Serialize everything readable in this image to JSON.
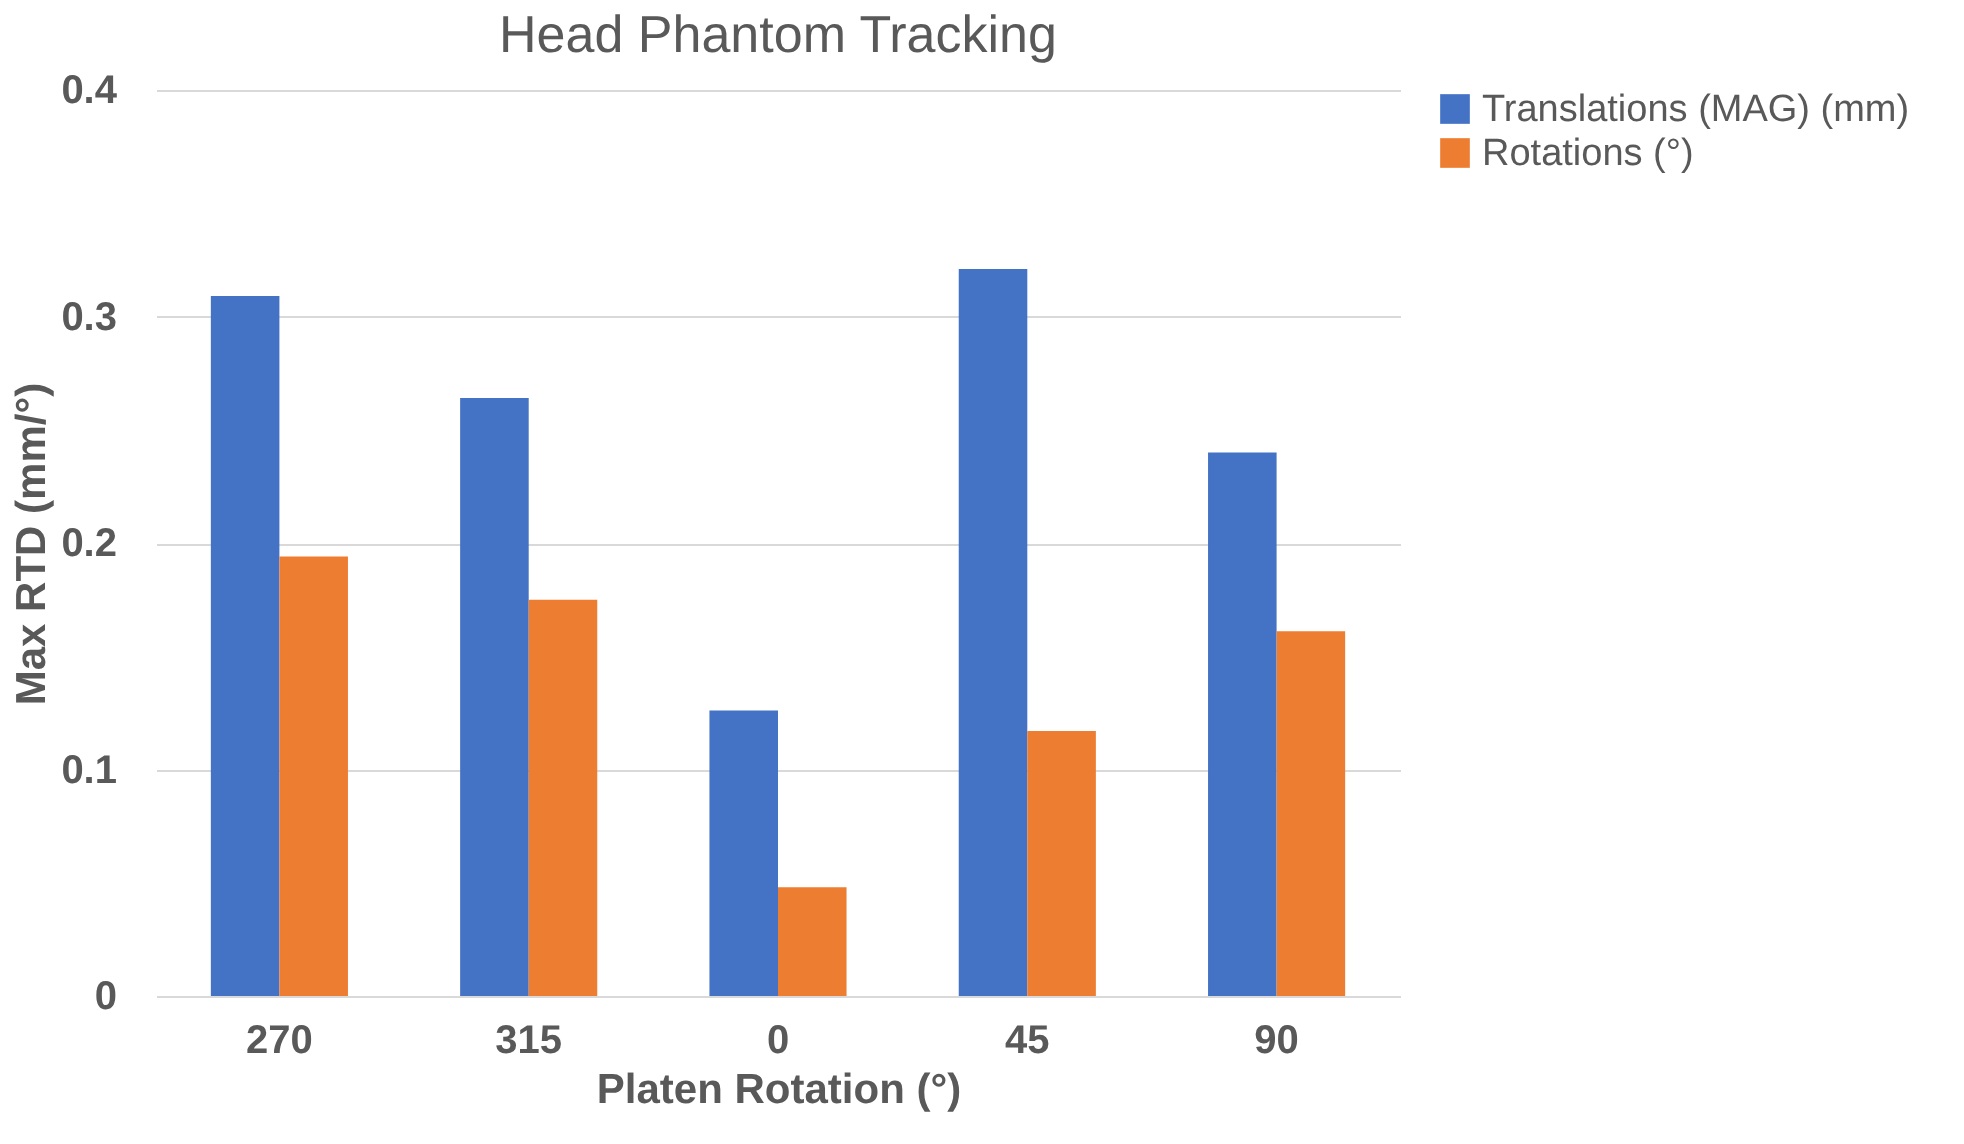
{
  "chart_data": {
    "type": "bar",
    "title": "Head Phantom Tracking",
    "xlabel": "Platen Rotation (°)",
    "ylabel": "Max  RTD (mm/°)",
    "categories": [
      "270",
      "315",
      "0",
      "45",
      "90"
    ],
    "series": [
      {
        "name": "Translations (MAG) (mm)",
        "color": "#4472c4",
        "values": [
          0.309,
          0.264,
          0.126,
          0.321,
          0.24
        ]
      },
      {
        "name": "Rotations (°)",
        "color": "#ed7d31",
        "values": [
          0.194,
          0.175,
          0.048,
          0.117,
          0.161
        ]
      }
    ],
    "ylim": [
      0,
      0.4
    ],
    "yticks": [
      0,
      0.1,
      0.2,
      0.3,
      0.4
    ],
    "grid": "y",
    "legend": "right"
  }
}
